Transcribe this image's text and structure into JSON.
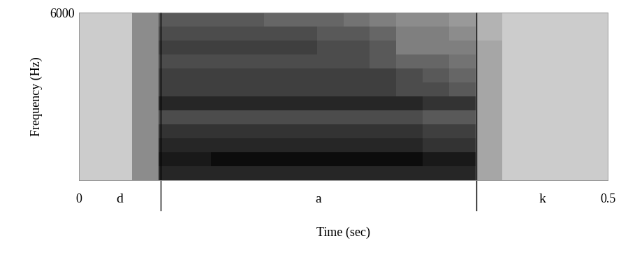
{
  "chart_data": {
    "type": "spectrogram",
    "xlabel": "Time (sec)",
    "ylabel": "Frequency (Hz)",
    "xlim": [
      0,
      0.5
    ],
    "ylim": [
      0,
      6000
    ],
    "xticks": [
      0,
      0.5
    ],
    "yticks": [
      6000
    ],
    "segments": [
      {
        "label": "d",
        "start": 0,
        "end": 0.077
      },
      {
        "label": "a",
        "start": 0.077,
        "end": 0.376
      },
      {
        "label": "k",
        "start": 0.376,
        "end": 0.5
      }
    ],
    "spectrogram": {
      "time_edges": [
        0,
        0.025,
        0.05,
        0.075,
        0.1,
        0.125,
        0.15,
        0.175,
        0.2,
        0.225,
        0.25,
        0.275,
        0.3,
        0.325,
        0.35,
        0.375,
        0.4,
        0.425,
        0.45,
        0.475,
        0.5
      ],
      "frequency_edges": [
        0,
        500,
        1000,
        1500,
        2000,
        2500,
        3000,
        3500,
        4000,
        4500,
        5000,
        5500,
        6000
      ],
      "intensity": [
        [
          0.2,
          0.2,
          0.45,
          0.85,
          0.85,
          0.85,
          0.85,
          0.85,
          0.85,
          0.85,
          0.85,
          0.85,
          0.85,
          0.85,
          0.85,
          0.35,
          0.2,
          0.2,
          0.2,
          0.2
        ],
        [
          0.2,
          0.2,
          0.45,
          0.9,
          0.9,
          0.95,
          0.95,
          0.95,
          0.95,
          0.95,
          0.95,
          0.95,
          0.95,
          0.9,
          0.9,
          0.35,
          0.2,
          0.2,
          0.2,
          0.2
        ],
        [
          0.2,
          0.2,
          0.45,
          0.85,
          0.85,
          0.85,
          0.85,
          0.85,
          0.85,
          0.85,
          0.85,
          0.85,
          0.85,
          0.8,
          0.8,
          0.35,
          0.2,
          0.2,
          0.2,
          0.2
        ],
        [
          0.2,
          0.2,
          0.45,
          0.8,
          0.8,
          0.8,
          0.8,
          0.8,
          0.8,
          0.8,
          0.8,
          0.8,
          0.8,
          0.75,
          0.75,
          0.35,
          0.2,
          0.2,
          0.2,
          0.2
        ],
        [
          0.2,
          0.2,
          0.45,
          0.7,
          0.7,
          0.7,
          0.7,
          0.7,
          0.7,
          0.7,
          0.7,
          0.7,
          0.7,
          0.65,
          0.65,
          0.35,
          0.2,
          0.2,
          0.2,
          0.2
        ],
        [
          0.2,
          0.2,
          0.45,
          0.85,
          0.85,
          0.85,
          0.85,
          0.85,
          0.85,
          0.85,
          0.85,
          0.85,
          0.85,
          0.8,
          0.8,
          0.35,
          0.2,
          0.2,
          0.2,
          0.2
        ],
        [
          0.2,
          0.2,
          0.45,
          0.75,
          0.75,
          0.75,
          0.75,
          0.75,
          0.75,
          0.75,
          0.75,
          0.75,
          0.7,
          0.7,
          0.65,
          0.35,
          0.2,
          0.2,
          0.2,
          0.2
        ],
        [
          0.2,
          0.2,
          0.45,
          0.75,
          0.75,
          0.75,
          0.75,
          0.75,
          0.75,
          0.75,
          0.75,
          0.75,
          0.7,
          0.65,
          0.6,
          0.35,
          0.2,
          0.2,
          0.2,
          0.2
        ],
        [
          0.2,
          0.2,
          0.45,
          0.7,
          0.7,
          0.7,
          0.7,
          0.7,
          0.7,
          0.7,
          0.7,
          0.65,
          0.6,
          0.6,
          0.55,
          0.35,
          0.2,
          0.2,
          0.2,
          0.2
        ],
        [
          0.2,
          0.2,
          0.45,
          0.75,
          0.75,
          0.75,
          0.75,
          0.75,
          0.75,
          0.7,
          0.7,
          0.65,
          0.5,
          0.5,
          0.5,
          0.35,
          0.2,
          0.2,
          0.2,
          0.2
        ],
        [
          0.2,
          0.2,
          0.45,
          0.7,
          0.7,
          0.7,
          0.7,
          0.7,
          0.7,
          0.65,
          0.65,
          0.6,
          0.5,
          0.5,
          0.45,
          0.3,
          0.2,
          0.2,
          0.2,
          0.2
        ],
        [
          0.2,
          0.2,
          0.45,
          0.65,
          0.65,
          0.65,
          0.65,
          0.6,
          0.6,
          0.6,
          0.55,
          0.5,
          0.45,
          0.45,
          0.4,
          0.3,
          0.2,
          0.2,
          0.2,
          0.2
        ]
      ]
    }
  }
}
